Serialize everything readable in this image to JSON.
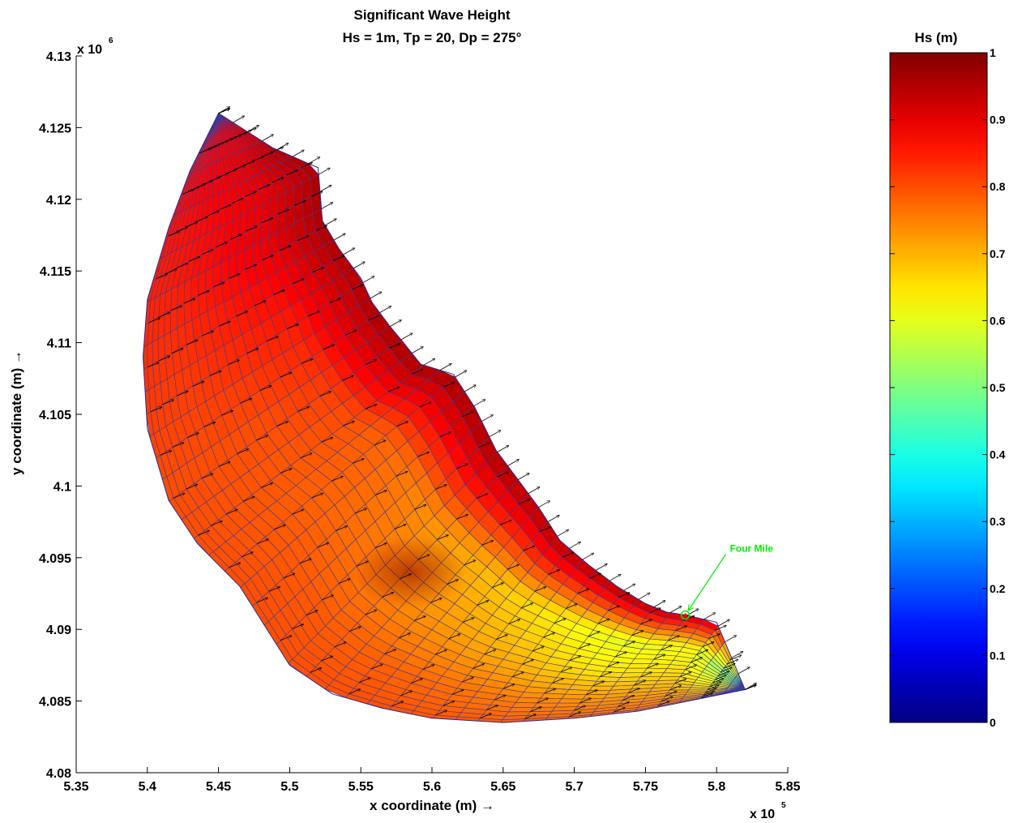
{
  "chart_data": {
    "type": "heatmap",
    "title": "Significant Wave Height",
    "subtitle": "Hs = 1m, Tp = 20, Dp = 275°",
    "xlabel": "x coordinate (m) →",
    "ylabel": "y coordinate (m) →",
    "x_exponent_label": "x 10",
    "x_exponent_power": "5",
    "y_exponent_label": "x 10",
    "y_exponent_power": "6",
    "xlim": [
      5.35,
      5.85
    ],
    "ylim": [
      4.08,
      4.13
    ],
    "xticks": [
      "5.35",
      "5.4",
      "5.45",
      "5.5",
      "5.55",
      "5.6",
      "5.65",
      "5.7",
      "5.75",
      "5.8",
      "5.85"
    ],
    "yticks": [
      "4.08",
      "4.085",
      "4.09",
      "4.095",
      "4.1",
      "4.105",
      "4.11",
      "4.115",
      "4.12",
      "4.125",
      "4.13"
    ],
    "colorbar": {
      "label": "Hs (m)",
      "range": [
        0,
        1
      ],
      "ticks": [
        "0",
        "0.1",
        "0.2",
        "0.3",
        "0.4",
        "0.5",
        "0.6",
        "0.7",
        "0.8",
        "0.9",
        "1"
      ],
      "colormap": "jet"
    },
    "grid": false,
    "domain": {
      "offshore_boundary": [
        [
          5.45,
          4.126
        ],
        [
          5.43,
          4.122
        ],
        [
          5.415,
          4.118
        ],
        [
          5.4,
          4.113
        ],
        [
          5.397,
          4.109
        ],
        [
          5.4,
          4.104
        ],
        [
          5.415,
          4.099
        ],
        [
          5.435,
          4.096
        ],
        [
          5.465,
          4.093
        ],
        [
          5.5,
          4.0875
        ]
      ],
      "south_boundary": [
        [
          5.5,
          4.0875
        ],
        [
          5.53,
          4.0855
        ],
        [
          5.565,
          4.0845
        ],
        [
          5.6,
          4.0838
        ],
        [
          5.65,
          4.0835
        ],
        [
          5.7,
          4.0838
        ],
        [
          5.745,
          4.0843
        ],
        [
          5.79,
          4.0852
        ],
        [
          5.82,
          4.0858
        ]
      ],
      "shoreline": [
        [
          5.45,
          4.126
        ],
        [
          5.488,
          4.1236
        ],
        [
          5.52,
          4.1222
        ],
        [
          5.523,
          4.1185
        ],
        [
          5.535,
          4.1165
        ],
        [
          5.55,
          4.1145
        ],
        [
          5.558,
          4.1128
        ],
        [
          5.57,
          4.1112
        ],
        [
          5.58,
          4.11
        ],
        [
          5.592,
          4.1085
        ],
        [
          5.615,
          4.1078
        ],
        [
          5.63,
          4.1055
        ],
        [
          5.645,
          4.1025
        ],
        [
          5.66,
          4.1005
        ],
        [
          5.675,
          4.0985
        ],
        [
          5.69,
          4.0962
        ],
        [
          5.71,
          4.0945
        ],
        [
          5.73,
          4.093
        ],
        [
          5.75,
          4.0918
        ],
        [
          5.765,
          4.0912
        ],
        [
          5.778,
          4.091
        ],
        [
          5.8,
          4.0905
        ],
        [
          5.82,
          4.0858
        ]
      ],
      "values_alongshore_offshore": [
        [
          0.85,
          0.86,
          0.87,
          0.88,
          0.88
        ],
        [
          0.86,
          0.87,
          0.88,
          0.9,
          0.95
        ],
        [
          0.84,
          0.85,
          0.87,
          0.9,
          0.96
        ],
        [
          0.82,
          0.82,
          0.84,
          0.86,
          0.95
        ],
        [
          0.8,
          0.8,
          0.8,
          0.82,
          0.96
        ],
        [
          0.8,
          0.79,
          0.78,
          0.78,
          0.96
        ],
        [
          0.8,
          0.79,
          0.76,
          0.74,
          0.96
        ],
        [
          0.8,
          0.78,
          0.73,
          0.7,
          0.95
        ],
        [
          0.79,
          0.76,
          0.7,
          0.65,
          0.95
        ],
        [
          0.78,
          0.73,
          0.65,
          0.6,
          0.95
        ],
        [
          0.77,
          0.72,
          0.66,
          0.62,
          0.9
        ],
        [
          0.74,
          0.66,
          0.55,
          0.45,
          0.5
        ]
      ]
    },
    "focus_area": {
      "x": 5.585,
      "y": 4.094,
      "value": 0.95
    },
    "annotation": {
      "label": "Four Mile",
      "x": 5.778,
      "y": 4.091,
      "color": "#00ee00"
    }
  }
}
